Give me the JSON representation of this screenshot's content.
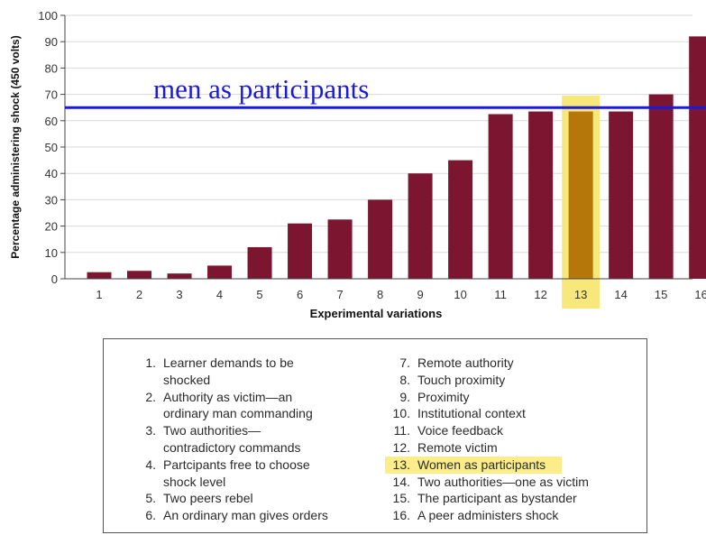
{
  "chart_data": {
    "type": "bar",
    "ylabel": "Percentage administering shock (450 volts)",
    "xlabel": "Experimental variations",
    "ylim": [
      0,
      100
    ],
    "yticks": [
      0,
      10,
      20,
      30,
      40,
      50,
      60,
      70,
      80,
      90,
      100
    ],
    "categories": [
      "1",
      "2",
      "3",
      "4",
      "5",
      "6",
      "7",
      "8",
      "9",
      "10",
      "11",
      "12",
      "13",
      "14",
      "15",
      "16"
    ],
    "values": [
      2.5,
      3,
      2,
      5,
      12,
      21,
      22.5,
      30,
      40,
      45,
      62.5,
      63.5,
      63.5,
      63.5,
      70,
      92
    ],
    "highlighted_category": "13",
    "reference_line": {
      "value": 65,
      "label": "men as participants",
      "color": "#1a1adc"
    },
    "colors": {
      "bar": "#7b1530",
      "highlight_bar": "#b5760a",
      "highlight_fill": "#f8e77a"
    },
    "grid": true
  },
  "legend": {
    "left": [
      {
        "num": "1.",
        "lines": [
          "Learner demands to be",
          "shocked"
        ]
      },
      {
        "num": "2.",
        "lines": [
          "Authority as victim—an",
          "ordinary man commanding"
        ]
      },
      {
        "num": "3.",
        "lines": [
          "Two authorities—",
          "contradictory commands"
        ]
      },
      {
        "num": "4.",
        "lines": [
          "Partcipants free to choose",
          "shock level"
        ]
      },
      {
        "num": "5.",
        "lines": [
          "Two peers rebel"
        ]
      },
      {
        "num": "6.",
        "lines": [
          "An ordinary man gives orders"
        ]
      }
    ],
    "right": [
      {
        "num": "7.",
        "lines": [
          "Remote authority"
        ]
      },
      {
        "num": "8.",
        "lines": [
          "Touch proximity"
        ]
      },
      {
        "num": "9.",
        "lines": [
          "Proximity"
        ]
      },
      {
        "num": "10.",
        "lines": [
          "Institutional context"
        ]
      },
      {
        "num": "11.",
        "lines": [
          "Voice feedback"
        ]
      },
      {
        "num": "12.",
        "lines": [
          "Remote victim"
        ]
      },
      {
        "num": "13.",
        "lines": [
          "Women as participants"
        ],
        "highlight": true
      },
      {
        "num": "14.",
        "lines": [
          "Two authorities—one as victim"
        ]
      },
      {
        "num": "15.",
        "lines": [
          "The participant as bystander"
        ]
      },
      {
        "num": "16.",
        "lines": [
          "A peer administers shock"
        ]
      }
    ]
  }
}
